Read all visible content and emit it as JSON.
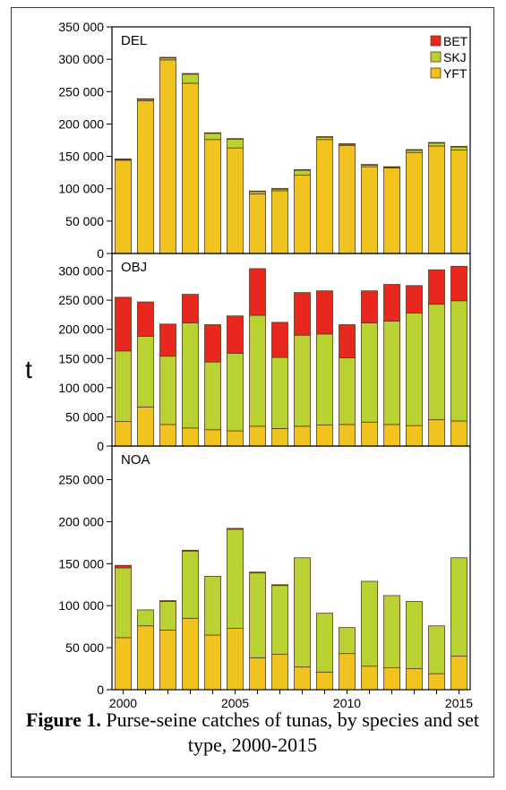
{
  "caption": {
    "label": "Figure 1.",
    "text": "Purse-seine catches of tunas, by species and set type, 2000-2015"
  },
  "chart_data": {
    "type": "bar",
    "stacked": true,
    "ylabel": "t",
    "x_tick_labels": [
      "2000",
      "2005",
      "2010",
      "2015"
    ],
    "categories": [
      "2000",
      "2001",
      "2002",
      "2003",
      "2004",
      "2005",
      "2006",
      "2007",
      "2008",
      "2009",
      "2010",
      "2011",
      "2012",
      "2013",
      "2014",
      "2015"
    ],
    "legend": {
      "placement": "top-right",
      "entries": [
        {
          "name": "BET",
          "color": "#e8281e"
        },
        {
          "name": "SKJ",
          "color": "#b9d232"
        },
        {
          "name": "YFT",
          "color": "#f0c31e"
        }
      ]
    },
    "panels": [
      {
        "name": "DEL",
        "ylim": [
          0,
          350000
        ],
        "yticks": [
          0,
          50000,
          100000,
          150000,
          200000,
          250000,
          300000,
          350000
        ],
        "ytick_labels": [
          "0",
          "50 000",
          "100 000",
          "150 000",
          "200 000",
          "250 000",
          "300 000",
          "350 000"
        ],
        "series": [
          {
            "name": "YFT",
            "values": [
              144000,
              236000,
              299000,
              263000,
              176000,
              163000,
              92000,
              97000,
              121000,
              176000,
              167000,
              134000,
              132000,
              156000,
              166000,
              160000
            ]
          },
          {
            "name": "SKJ",
            "values": [
              1500,
              2500,
              3000,
              14000,
              10000,
              14000,
              4000,
              3000,
              8000,
              4000,
              2000,
              3000,
              1500,
              4000,
              5000,
              5000
            ]
          },
          {
            "name": "BET",
            "values": [
              500,
              500,
              1000,
              1000,
              500,
              500,
              500,
              500,
              500,
              500,
              500,
              500,
              500,
              500,
              500,
              500
            ]
          }
        ]
      },
      {
        "name": "OBJ",
        "ylim": [
          0,
          330000
        ],
        "yticks": [
          0,
          50000,
          100000,
          150000,
          200000,
          250000,
          300000
        ],
        "ytick_labels": [
          "0",
          "50 000",
          "100 000",
          "150 000",
          "200 000",
          "250 000",
          "300 000"
        ],
        "series": [
          {
            "name": "YFT",
            "values": [
              42000,
              67000,
              37000,
              31000,
              28000,
              26000,
              34000,
              30000,
              34000,
              36000,
              37000,
              41000,
              37000,
              35000,
              45000,
              43000
            ]
          },
          {
            "name": "SKJ",
            "values": [
              121000,
              121000,
              117000,
              180000,
              116000,
              133000,
              190000,
              122000,
              156000,
              156000,
              114000,
              170000,
              177000,
              193000,
              198000,
              206000
            ]
          },
          {
            "name": "BET",
            "values": [
              92000,
              59000,
              55000,
              49000,
              64000,
              64000,
              80000,
              60000,
              73000,
              74000,
              57000,
              55000,
              63000,
              47000,
              59000,
              59000
            ]
          }
        ]
      },
      {
        "name": "NOA",
        "ylim": [
          0,
          290000
        ],
        "yticks": [
          0,
          50000,
          100000,
          150000,
          200000,
          250000
        ],
        "ytick_labels": [
          "0",
          "50 000",
          "100 000",
          "150 000",
          "200 000",
          "250 000"
        ],
        "series": [
          {
            "name": "YFT",
            "values": [
              62000,
              76000,
              71000,
              85000,
              65000,
              73000,
              38000,
              42000,
              27000,
              21000,
              43000,
              28000,
              26000,
              25000,
              19000,
              40000
            ]
          },
          {
            "name": "SKJ",
            "values": [
              83000,
              19000,
              34000,
              80000,
              70000,
              118000,
              101000,
              82000,
              130000,
              70000,
              31000,
              101000,
              86000,
              80000,
              57000,
              117000
            ]
          },
          {
            "name": "BET",
            "values": [
              3000,
              0,
              1000,
              1000,
              0,
              1000,
              1000,
              1000,
              0,
              0,
              0,
              0,
              0,
              0,
              0,
              0
            ]
          }
        ]
      }
    ]
  }
}
